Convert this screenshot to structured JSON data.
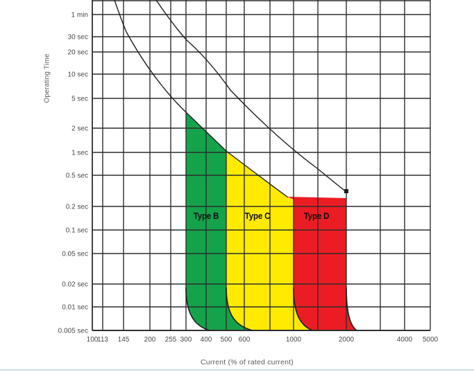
{
  "chart_data": {
    "type": "area",
    "title": "",
    "xlabel": "Current (% of rated current)",
    "ylabel": "Operating Time",
    "x_scale": "log",
    "y_scale": "log",
    "grid": true,
    "x_tick_labels": [
      "100",
      "113",
      "145",
      "200",
      "255",
      "300",
      "400",
      "500",
      "600",
      "1000",
      "2000",
      "4000",
      "5000"
    ],
    "x_tick_values": [
      100,
      113,
      145,
      200,
      255,
      300,
      400,
      500,
      600,
      1000,
      2000,
      4000,
      5000
    ],
    "y_tick_labels": [
      "1 min",
      "30 sec",
      "20 sec",
      "10 sec",
      "5 sec",
      "2 sec",
      "1 sec",
      "0.5 sec",
      "0.2 sec",
      "0.1 sec",
      "0.05 sec",
      "0.02 sec",
      "0.01 sec",
      "0.005 sec"
    ],
    "y_tick_seconds": [
      60,
      30,
      20,
      10,
      5,
      2,
      1,
      0.5,
      0.2,
      0.1,
      0.05,
      0.02,
      0.01,
      0.005
    ],
    "regions": [
      {
        "label": "Type B",
        "color": "#14A34B",
        "current_range_percent": [
          300,
          500
        ]
      },
      {
        "label": "Type C",
        "color": "#FFEA00",
        "current_range_percent": [
          500,
          1000
        ]
      },
      {
        "label": "Type D",
        "color": "#EC1C24",
        "current_range_percent": [
          1000,
          2000
        ]
      }
    ],
    "curves": [
      {
        "name": "lower trip curve",
        "points_percent_seconds": [
          [
            130,
            89
          ],
          [
            145,
            39
          ],
          [
            200,
            10.5
          ],
          [
            255,
            4.9
          ],
          [
            300,
            3.2
          ],
          [
            500,
            1.0
          ],
          [
            1000,
            0.26
          ]
        ]
      },
      {
        "name": "upper trip curve",
        "points_percent_seconds": [
          [
            212,
            89
          ],
          [
            306,
            30
          ],
          [
            390,
            15
          ],
          [
            508,
            6.3
          ],
          [
            1000,
            1.3
          ],
          [
            1500,
            0.62
          ],
          [
            2000,
            0.31
          ]
        ]
      }
    ]
  }
}
